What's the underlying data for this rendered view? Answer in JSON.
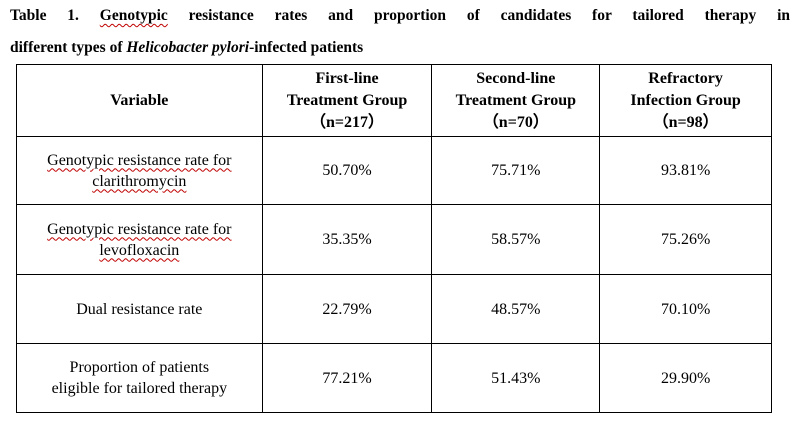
{
  "caption": {
    "label": "Table 1.",
    "part1": "Genotypic",
    "part2": "resistance rates and proportion of candidates for tailored therapy in",
    "part3": "different types of",
    "italic": "Helicobacter pylori",
    "part4": "-infected patients"
  },
  "table": {
    "headers": [
      {
        "lines": [
          "Variable"
        ]
      },
      {
        "lines": [
          "First-line",
          "Treatment Group",
          "（n=217）"
        ]
      },
      {
        "lines": [
          "Second-line",
          "Treatment Group",
          "（n=70）"
        ]
      },
      {
        "lines": [
          "Refractory",
          "Infection Group",
          "（n=98）"
        ]
      }
    ],
    "rows": [
      {
        "label_lines": [
          "Genotypic resistance rate for",
          "clarithromycin"
        ],
        "values": [
          "50.70%",
          "75.71%",
          "93.81%"
        ]
      },
      {
        "label_lines": [
          "Genotypic resistance rate for",
          "levofloxacin"
        ],
        "values": [
          "35.35%",
          "58.57%",
          "75.26%"
        ]
      },
      {
        "label_lines": [
          "Dual resistance rate"
        ],
        "values": [
          "22.79%",
          "48.57%",
          "70.10%"
        ]
      },
      {
        "label_lines": [
          "Proportion of patients",
          "eligible for tailored therapy"
        ],
        "values": [
          "77.21%",
          "51.43%",
          "29.90%"
        ]
      }
    ]
  }
}
